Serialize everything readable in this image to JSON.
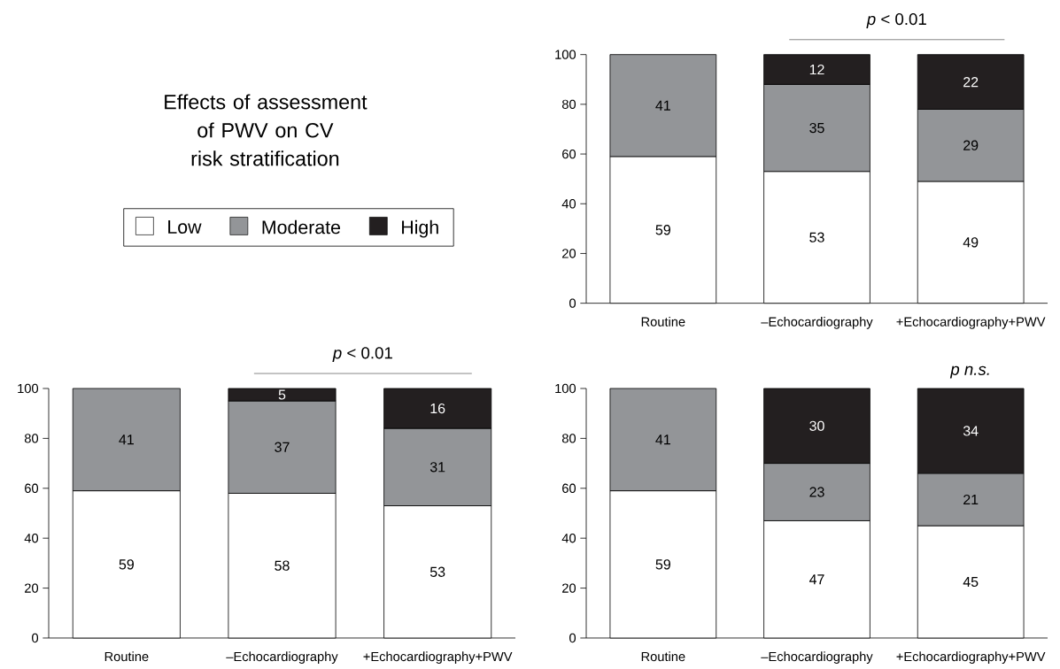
{
  "chart_data": [
    {
      "type": "other",
      "title": "Effects of assessment of PWV on CV risk stratification"
    },
    {
      "type": "bar",
      "stacked": true,
      "legend": "left",
      "data_labels": true,
      "categories": [
        "Routine",
        "–Echocardiography",
        "+Echocardiography+PWV"
      ],
      "series": [
        {
          "name": "Low",
          "color": "#ffffff",
          "values": [
            59,
            53,
            49
          ]
        },
        {
          "name": "Moderate",
          "color": "#939598",
          "values": [
            41,
            35,
            29
          ]
        },
        {
          "name": "High",
          "color": "#231f20",
          "values": [
            null,
            12,
            22
          ]
        }
      ],
      "ylim": [
        0,
        100
      ],
      "yticks": [
        0,
        20,
        40,
        60,
        80,
        100
      ],
      "grid": false,
      "annotations": [
        "*p* < 0.01"
      ]
    },
    {
      "type": "bar",
      "stacked": true,
      "data_labels": true,
      "categories": [
        "Routine",
        "–Echocardiography",
        "+Echocardiography+PWV"
      ],
      "series": [
        {
          "color": "#ffffff",
          "values": [
            59,
            58,
            53
          ]
        },
        {
          "color": "#939598",
          "values": [
            41,
            37,
            31
          ]
        },
        {
          "color": "#231f20",
          "values": [
            null,
            5,
            16
          ]
        }
      ],
      "ylim": [
        0,
        100
      ],
      "yticks": [
        0,
        20,
        40,
        60,
        80,
        100
      ],
      "grid": false,
      "annotations": [
        "*p* < 0.01"
      ]
    },
    {
      "type": "bar",
      "stacked": true,
      "data_labels": true,
      "categories": [
        "Routine",
        "–Echocardiography",
        "+Echocardiography+PWV"
      ],
      "series": [
        {
          "color": "#ffffff",
          "values": [
            59,
            47,
            45
          ]
        },
        {
          "color": "#939598",
          "values": [
            41,
            23,
            21
          ]
        },
        {
          "color": "#231f20",
          "values": [
            null,
            30,
            34
          ]
        }
      ],
      "ylim": [
        0,
        100
      ],
      "yticks": [
        0,
        20,
        40,
        60,
        80,
        100
      ],
      "grid": false,
      "annotations": [
        "*p n.s.*"
      ]
    }
  ]
}
